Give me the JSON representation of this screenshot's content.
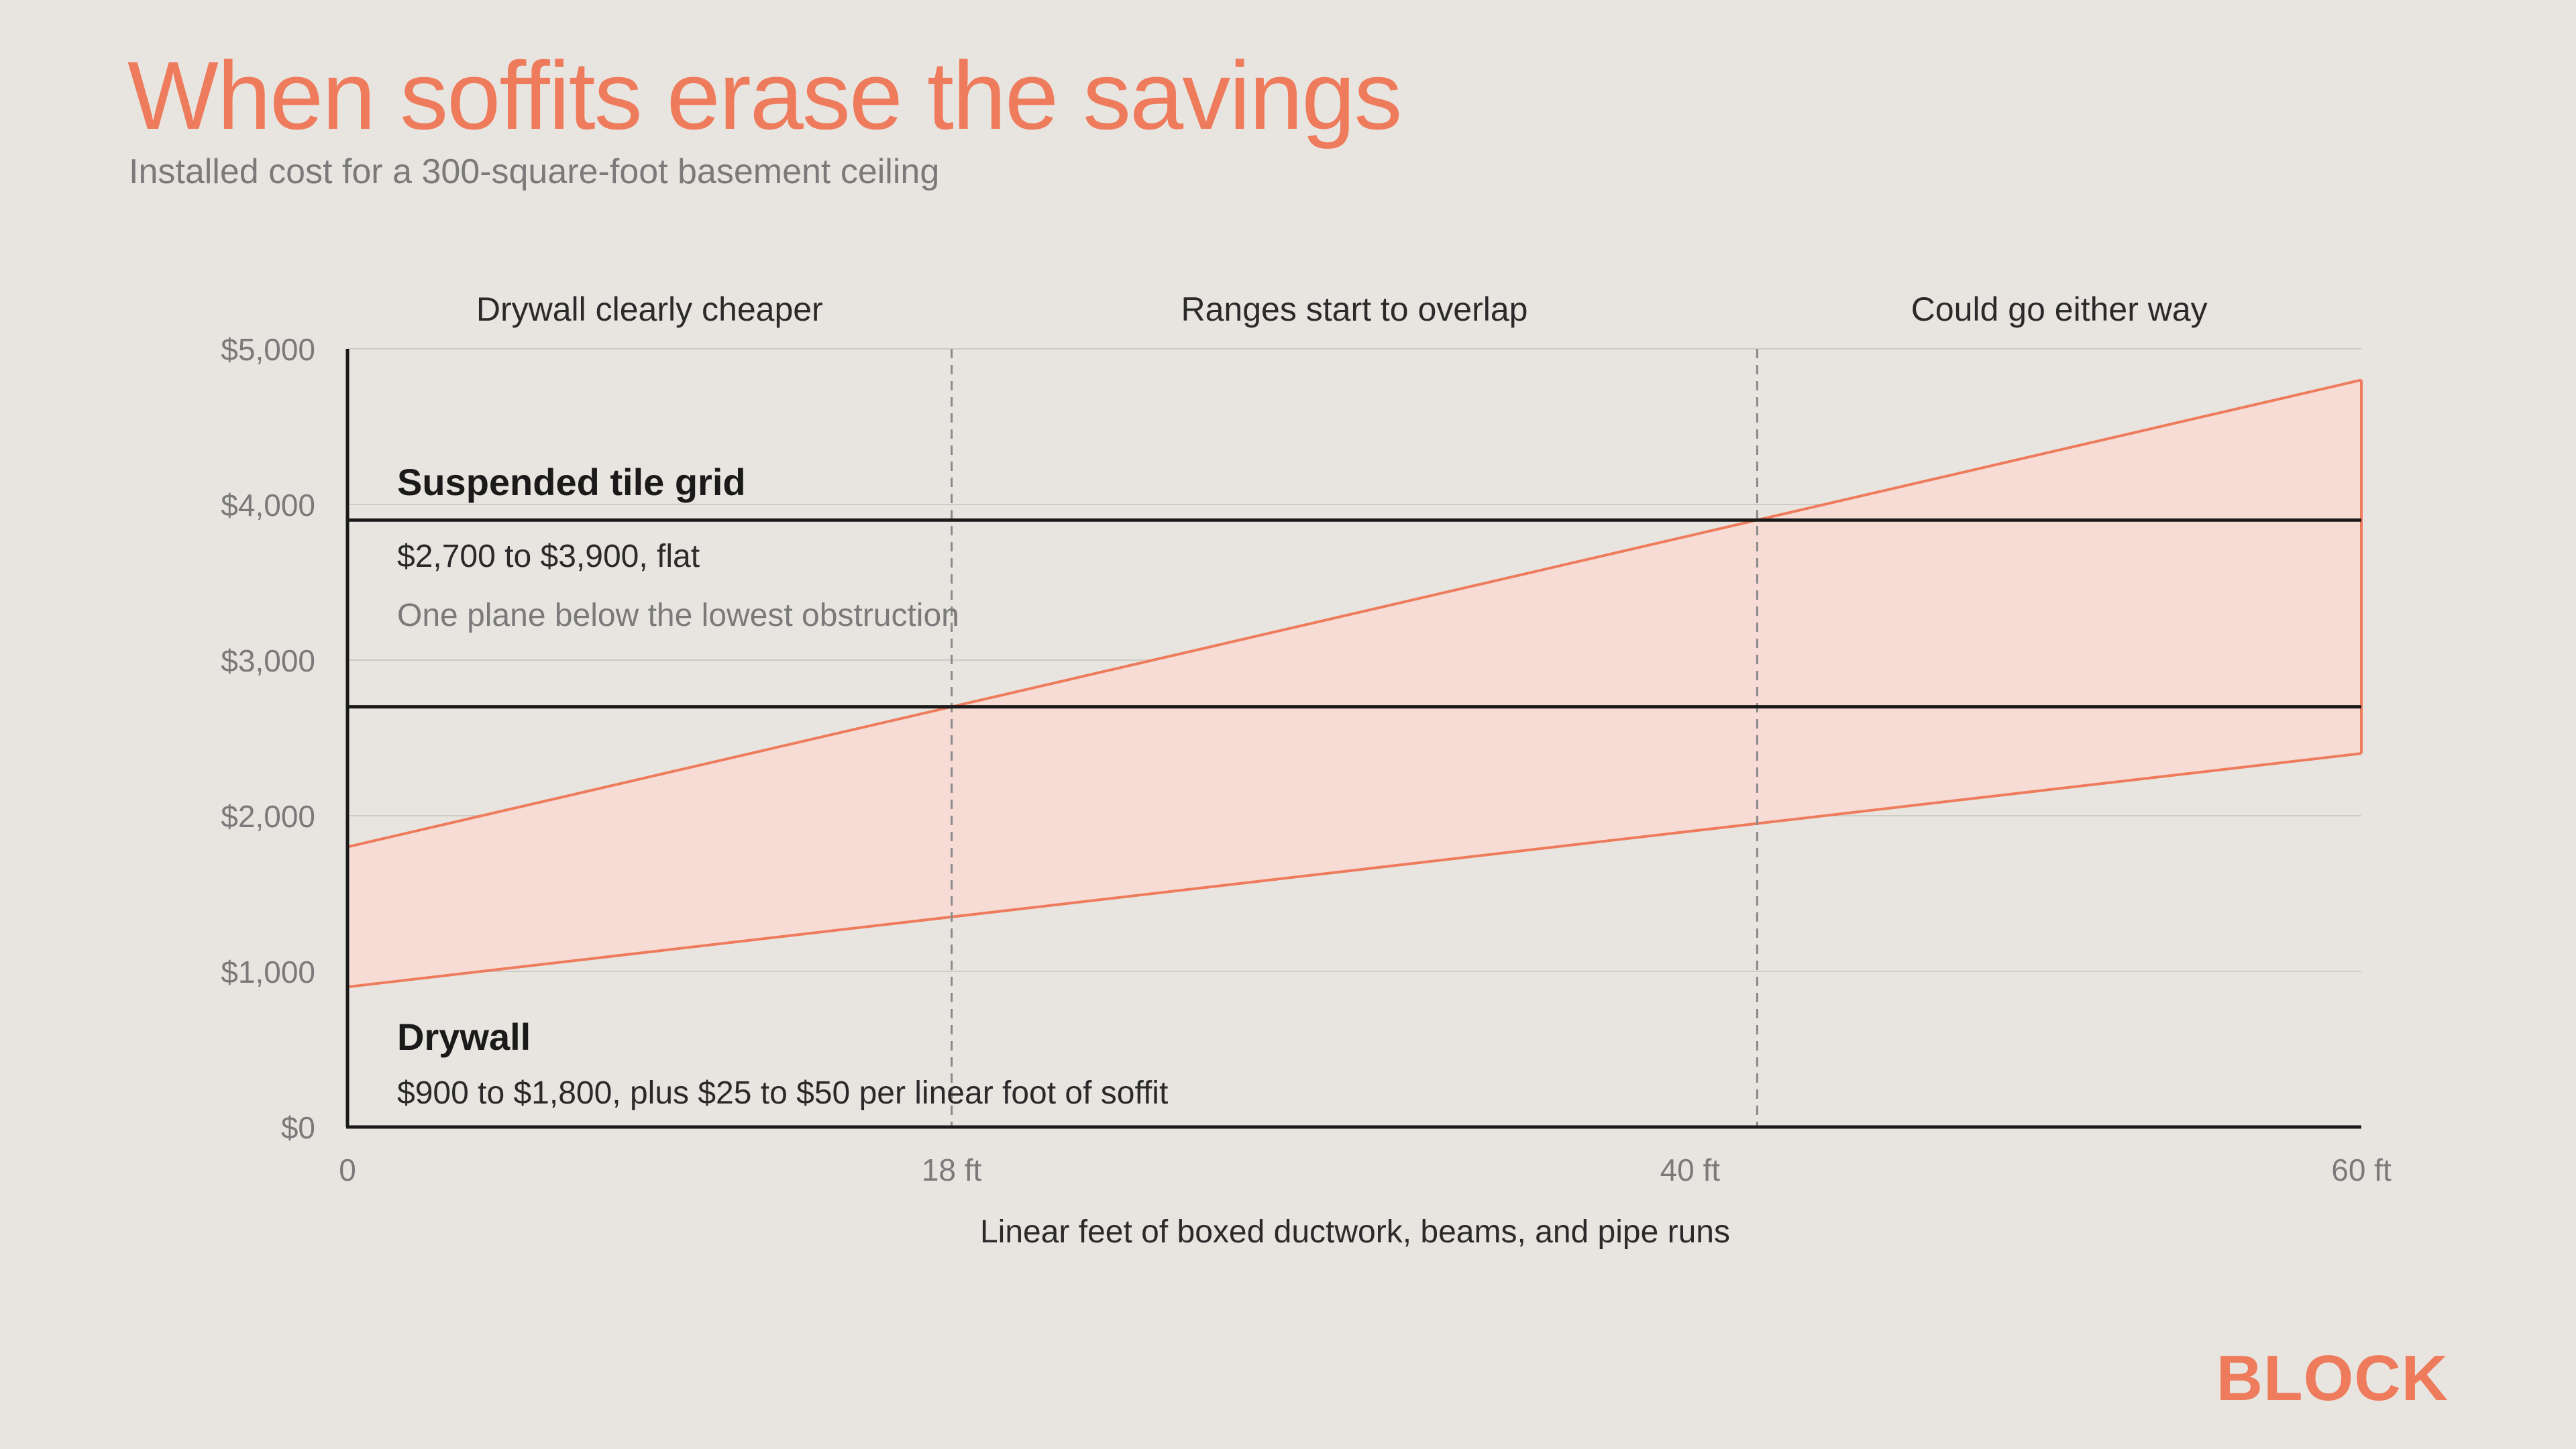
{
  "title": "When soffits erase the savings",
  "subtitle": "Installed cost for a 300-square-foot basement ceiling",
  "brand": "BLOCK",
  "colors": {
    "accent": "#ee7b5c",
    "band_fill": "#f6dcd5",
    "flat_line": "#1a1a1a",
    "background": "#e8e5e0"
  },
  "chart_data": {
    "type": "line",
    "xlabel": "Linear feet of boxed ductwork, beams, and pipe runs",
    "ylabel": "",
    "xlim": [
      0,
      60
    ],
    "ylim": [
      0,
      5000
    ],
    "grid": true,
    "x_ticks": [
      {
        "value": 0,
        "label": "0"
      },
      {
        "value": 18,
        "label": "18 ft"
      },
      {
        "value": 40,
        "label": "40 ft"
      },
      {
        "value": 60,
        "label": "60 ft"
      }
    ],
    "y_ticks": [
      {
        "value": 0,
        "label": "$0"
      },
      {
        "value": 1000,
        "label": "$1,000"
      },
      {
        "value": 2000,
        "label": "$2,000"
      },
      {
        "value": 3000,
        "label": "$3,000"
      },
      {
        "value": 4000,
        "label": "$4,000"
      },
      {
        "value": 5000,
        "label": "$5,000"
      }
    ],
    "dividers": [
      18,
      42
    ],
    "regions": [
      {
        "label": "Drywall clearly cheaper",
        "x_from": 0,
        "x_to": 18
      },
      {
        "label": "Ranges start to overlap",
        "x_from": 18,
        "x_to": 42
      },
      {
        "label": "Could go either way",
        "x_from": 42,
        "x_to": 60
      }
    ],
    "series": [
      {
        "key": "drywall",
        "x": [
          0,
          60
        ],
        "low": [
          900,
          2400
        ],
        "high": [
          1800,
          4800
        ]
      },
      {
        "key": "tile",
        "x": [
          0,
          60
        ],
        "low": [
          2700,
          2700
        ],
        "high": [
          3900,
          3900
        ]
      }
    ],
    "annotations": {
      "tile": {
        "name": "Suspended tile grid",
        "range": "$2,700 to $3,900, flat",
        "note": "One plane below the lowest obstruction"
      },
      "drywall": {
        "name": "Drywall",
        "range": "$900 to $1,800, plus $25 to $50 per linear foot of soffit"
      }
    }
  }
}
